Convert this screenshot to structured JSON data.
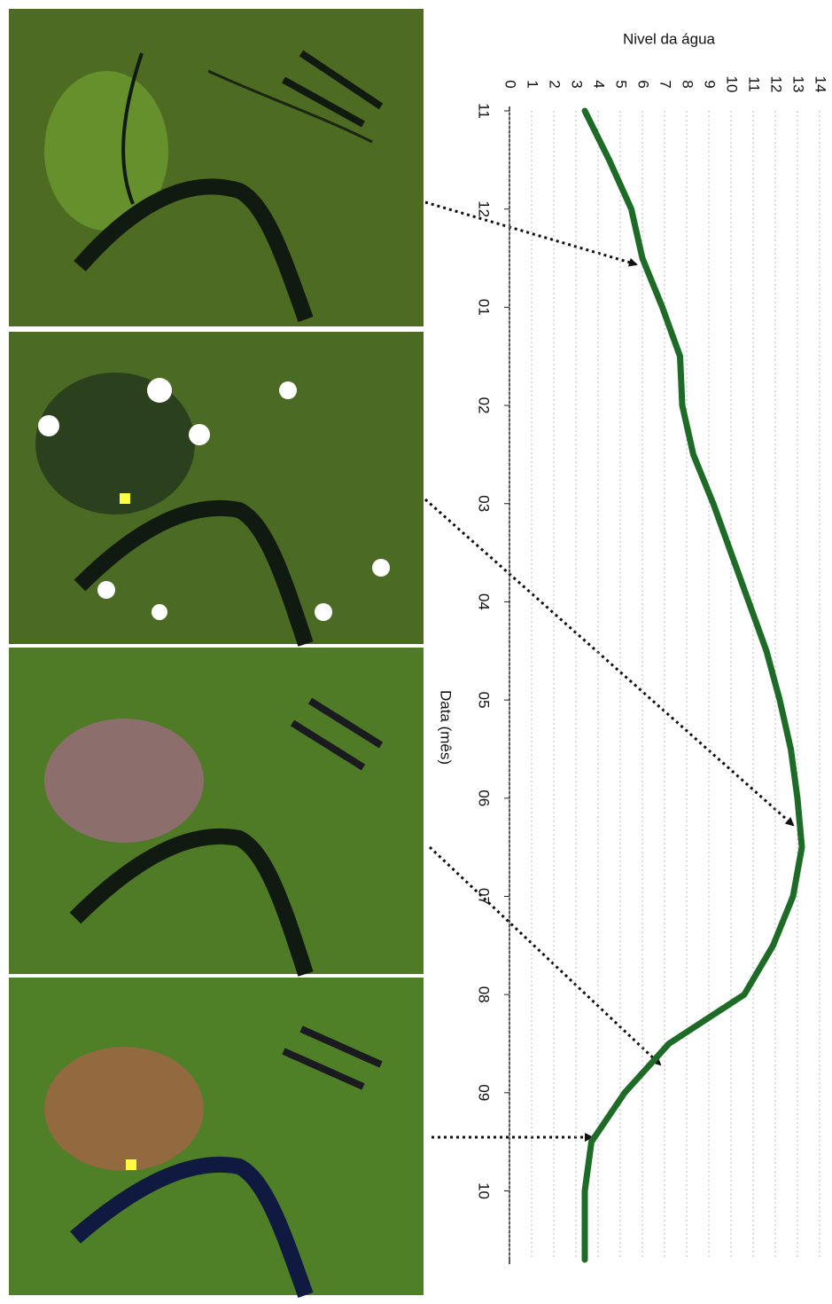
{
  "chart_data": {
    "type": "line",
    "y_label": "Nivel da água",
    "x_label": "Data (mês)",
    "x": [
      0,
      0.5,
      1,
      1.5,
      2,
      2.5,
      3,
      3.5,
      4,
      4.5,
      5,
      5.5,
      6,
      6.5,
      7,
      7.5,
      8,
      8.5,
      9,
      9.5,
      10,
      10.5,
      11,
      11.5,
      11.7
    ],
    "series": [
      {
        "name": "Nivel da água",
        "color": "#1e6b28",
        "values": [
          3.4,
          4.5,
          5.5,
          6.0,
          6.9,
          7.7,
          7.8,
          8.3,
          9.2,
          10.0,
          10.8,
          11.6,
          12.2,
          12.7,
          13.0,
          13.2,
          12.8,
          11.9,
          10.6,
          7.2,
          5.2,
          3.7,
          3.4,
          3.4,
          3.4
        ]
      }
    ],
    "ylim": [
      0,
      14
    ],
    "yticks": [
      0,
      1,
      2,
      3,
      4,
      5,
      6,
      7,
      8,
      9,
      10,
      11,
      12,
      13,
      14
    ],
    "xlim": [
      0,
      11.7
    ],
    "xticks": [
      {
        "value": 0,
        "label": "11"
      },
      {
        "value": 1,
        "label": "12"
      },
      {
        "value": 2,
        "label": "01"
      },
      {
        "value": 3,
        "label": "02"
      },
      {
        "value": 4,
        "label": "03"
      },
      {
        "value": 5,
        "label": "04"
      },
      {
        "value": 6,
        "label": "05"
      },
      {
        "value": 7,
        "label": "06"
      },
      {
        "value": 8,
        "label": "07"
      },
      {
        "value": 9,
        "label": "08"
      },
      {
        "value": 10,
        "label": "09"
      },
      {
        "value": 11,
        "label": "10"
      }
    ],
    "grid": true
  }
}
